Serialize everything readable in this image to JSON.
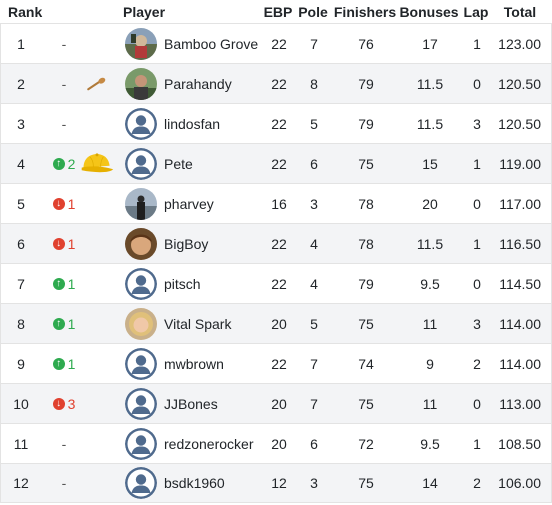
{
  "headers": {
    "rank": "Rank",
    "player": "Player",
    "ebp": "EBP",
    "pole": "Pole",
    "finishers": "Finishers",
    "bonuses": "Bonuses",
    "lap": "Lap",
    "total": "Total"
  },
  "rows": [
    {
      "rank": "1",
      "move": "-",
      "move_dir": "same",
      "award": "",
      "avatar": "photo-landscape",
      "name": "Bamboo Grove",
      "ebp": "22",
      "pole": "7",
      "finishers": "76",
      "bonuses": "17",
      "lap": "1",
      "total": "123.00"
    },
    {
      "rank": "2",
      "move": "-",
      "move_dir": "same",
      "award": "wooden-spoon-icon",
      "avatar": "photo-person",
      "name": "Parahandy",
      "ebp": "22",
      "pole": "8",
      "finishers": "79",
      "bonuses": "11.5",
      "lap": "0",
      "total": "120.50"
    },
    {
      "rank": "3",
      "move": "-",
      "move_dir": "same",
      "award": "",
      "avatar": "default",
      "name": "lindosfan",
      "ebp": "22",
      "pole": "5",
      "finishers": "79",
      "bonuses": "11.5",
      "lap": "3",
      "total": "120.50"
    },
    {
      "rank": "4",
      "move": "2",
      "move_dir": "up",
      "award": "yellow-cap-icon",
      "avatar": "default",
      "name": "Pete",
      "ebp": "22",
      "pole": "6",
      "finishers": "75",
      "bonuses": "15",
      "lap": "1",
      "total": "119.00"
    },
    {
      "rank": "5",
      "move": "1",
      "move_dir": "down",
      "award": "",
      "avatar": "photo-dark",
      "name": "pharvey",
      "ebp": "16",
      "pole": "3",
      "finishers": "78",
      "bonuses": "20",
      "lap": "0",
      "total": "117.00"
    },
    {
      "rank": "6",
      "move": "1",
      "move_dir": "down",
      "award": "",
      "avatar": "photo-face",
      "name": "BigBoy",
      "ebp": "22",
      "pole": "4",
      "finishers": "78",
      "bonuses": "11.5",
      "lap": "1",
      "total": "116.50"
    },
    {
      "rank": "7",
      "move": "1",
      "move_dir": "up",
      "award": "",
      "avatar": "default",
      "name": "pitsch",
      "ebp": "22",
      "pole": "4",
      "finishers": "79",
      "bonuses": "9.5",
      "lap": "0",
      "total": "114.50"
    },
    {
      "rank": "8",
      "move": "1",
      "move_dir": "up",
      "award": "",
      "avatar": "photo-blonde",
      "name": "Vital Spark",
      "ebp": "20",
      "pole": "5",
      "finishers": "75",
      "bonuses": "11",
      "lap": "3",
      "total": "114.00"
    },
    {
      "rank": "9",
      "move": "1",
      "move_dir": "up",
      "award": "",
      "avatar": "default",
      "name": "mwbrown",
      "ebp": "22",
      "pole": "7",
      "finishers": "74",
      "bonuses": "9",
      "lap": "2",
      "total": "114.00"
    },
    {
      "rank": "10",
      "move": "3",
      "move_dir": "down",
      "award": "",
      "avatar": "default",
      "name": "JJBones",
      "ebp": "20",
      "pole": "7",
      "finishers": "75",
      "bonuses": "11",
      "lap": "0",
      "total": "113.00"
    },
    {
      "rank": "11",
      "move": "-",
      "move_dir": "same",
      "award": "",
      "avatar": "default",
      "name": "redzonerocker",
      "ebp": "20",
      "pole": "6",
      "finishers": "72",
      "bonuses": "9.5",
      "lap": "1",
      "total": "108.50"
    },
    {
      "rank": "12",
      "move": "-",
      "move_dir": "same",
      "award": "",
      "avatar": "default",
      "name": "bsdk1960",
      "ebp": "12",
      "pole": "3",
      "finishers": "75",
      "bonuses": "14",
      "lap": "2",
      "total": "106.00"
    }
  ],
  "colors": {
    "up": "#2eaa4f",
    "down": "#e0412f",
    "stripe": "#f3f4f6",
    "default_avatar": "#4f6a8d"
  }
}
